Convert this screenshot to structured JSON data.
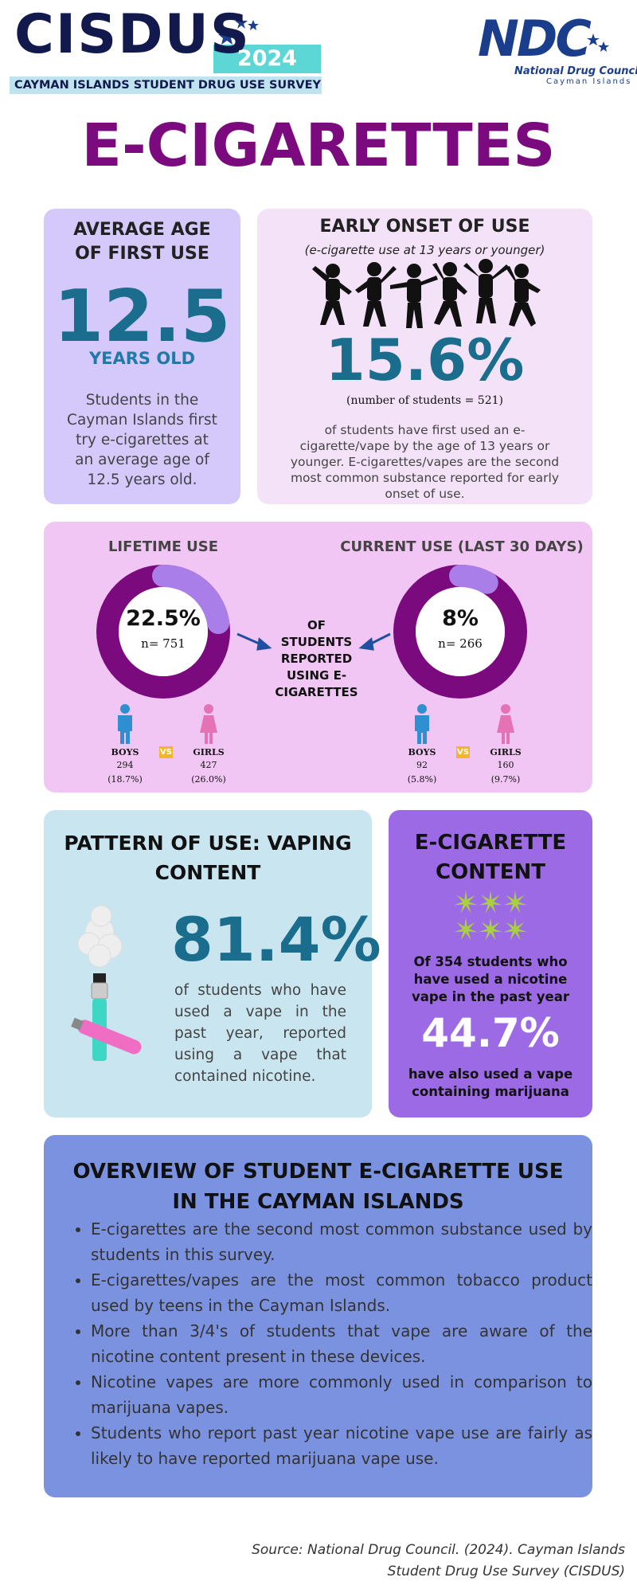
{
  "header": {
    "brand": "CISDUS",
    "year": "2024",
    "subtitle": "CAYMAN ISLANDS STUDENT DRUG USE SURVEY",
    "logo": {
      "mark": "NDC",
      "name": "National Drug Council",
      "place": "Cayman Islands"
    }
  },
  "title": "E-CIGARETTES",
  "average_age": {
    "heading": "AVERAGE AGE OF FIRST USE",
    "value": "12.5",
    "unit": "YEARS OLD",
    "text": "Students in the Cayman Islands first try e-cigarettes at an average age of 12.5 years old."
  },
  "early_onset": {
    "heading": "EARLY ONSET OF USE",
    "subheading": "(e-cigarette use at 13 years or younger)",
    "value": "15.6%",
    "note": "(number of students = 521)",
    "text": "of students have first used an e-cigarette/vape by the age of 13 years or younger. E-cigarettes/vapes are the second most common substance reported for early onset of use."
  },
  "use": {
    "center_text": "OF STUDENTS REPORTED USING E-CIGARETTES",
    "vs": "VS",
    "panels": [
      {
        "heading": "LIFETIME USE",
        "percent": {
          "value": 22.5,
          "label": "22.5%"
        },
        "n": "n= 751",
        "boys": {
          "label": "BOYS",
          "count": "294",
          "share": "(18.7%)"
        },
        "girls": {
          "label": "GIRLS",
          "count": "427",
          "share": "(26.0%)"
        }
      },
      {
        "heading": "CURRENT USE (LAST 30 DAYS)",
        "percent": {
          "value": 8,
          "label": "8%"
        },
        "n": "n= 266",
        "boys": {
          "label": "BOYS",
          "count": "92",
          "share": "(5.8%)"
        },
        "girls": {
          "label": "GIRLS",
          "count": "160",
          "share": "(9.7%)"
        }
      }
    ]
  },
  "pattern": {
    "heading": "PATTERN OF USE: VAPING CONTENT",
    "value": "81.4%",
    "text": "of students who have used a vape in the past year, reported using a vape that contained nicotine."
  },
  "content": {
    "heading": "E-CIGARETTE CONTENT",
    "text_before": "Of 354 students who have used a nicotine vape in the past year",
    "value": "44.7%",
    "text_after": "have also used a vape containing marijuana"
  },
  "overview": {
    "heading": "OVERVIEW OF STUDENT E-CIGARETTE USE IN THE CAYMAN ISLANDS",
    "bullets": [
      "E-cigarettes are the second most common substance used by students in this survey.",
      "E-cigarettes/vapes are the most common tobacco product used by teens in the Cayman Islands.",
      "More than 3/4's of students that vape are aware of the nicotine content present in these devices.",
      "Nicotine vapes are more commonly used in comparison to marijuana vapes.",
      "Students who report past year nicotine vape use are fairly as likely to have reported marijuana vape use."
    ]
  },
  "source": "Source: National Drug Council. (2024). Cayman Islands Student Drug Use Survey (CISDUS)"
}
